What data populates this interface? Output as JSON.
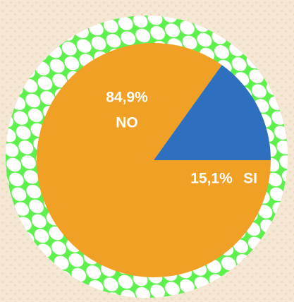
{
  "chart_data": {
    "type": "pie",
    "categories": [
      "NO",
      "SI"
    ],
    "values": [
      84.9,
      15.1
    ],
    "value_labels": [
      "84,9%",
      "15,1%"
    ],
    "colors": [
      "#f0a024",
      "#2f6fc0"
    ]
  }
}
